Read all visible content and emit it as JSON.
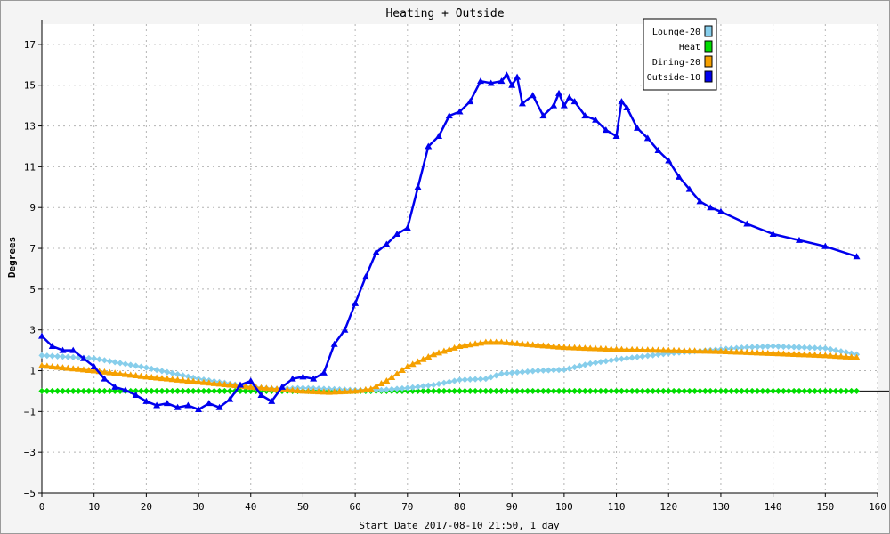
{
  "chart_data": {
    "type": "line",
    "title": "Heating + Outside",
    "xlabel": "Start Date 2017-08-10 21:50, 1 day",
    "ylabel": "Degrees",
    "xlim": [
      0,
      160
    ],
    "ylim": [
      -5,
      18
    ],
    "x_ticks": [
      0,
      10,
      20,
      30,
      40,
      50,
      60,
      70,
      80,
      90,
      100,
      110,
      120,
      130,
      140,
      150,
      160
    ],
    "y_ticks": [
      -5,
      -3,
      -1,
      1,
      3,
      5,
      7,
      9,
      11,
      13,
      15,
      17
    ],
    "grid": true,
    "legend_position": "top-right",
    "series": [
      {
        "name": "Lounge-20",
        "color": "#87ceeb",
        "marker": "diamond",
        "x": [
          0,
          10,
          20,
          30,
          40,
          45,
          50,
          60,
          65,
          70,
          75,
          80,
          85,
          88,
          95,
          100,
          105,
          110,
          115,
          120,
          125,
          130,
          135,
          140,
          145,
          150,
          156
        ],
        "y": [
          1.75,
          1.6,
          1.15,
          0.6,
          0.2,
          0.1,
          0.15,
          0.05,
          0.05,
          0.15,
          0.3,
          0.55,
          0.6,
          0.85,
          1.0,
          1.05,
          1.35,
          1.55,
          1.7,
          1.85,
          1.95,
          2.05,
          2.15,
          2.2,
          2.15,
          2.1,
          1.8
        ]
      },
      {
        "name": "Heat",
        "color": "#00dd00",
        "marker": "diamond",
        "x": [
          0,
          156
        ],
        "y": [
          0,
          0
        ]
      },
      {
        "name": "Dining-20",
        "color": "#f5a000",
        "marker": "triangle",
        "x": [
          0,
          10,
          20,
          30,
          40,
          50,
          55,
          60,
          63,
          66,
          70,
          75,
          80,
          85,
          88,
          95,
          100,
          110,
          120,
          130,
          140,
          150,
          156
        ],
        "y": [
          1.25,
          1.0,
          0.7,
          0.45,
          0.2,
          0.0,
          -0.05,
          0.0,
          0.1,
          0.5,
          1.2,
          1.8,
          2.2,
          2.4,
          2.4,
          2.25,
          2.15,
          2.05,
          2.0,
          1.95,
          1.85,
          1.75,
          1.65
        ]
      },
      {
        "name": "Outside-10",
        "color": "#0000ee",
        "marker": "triangle",
        "x": [
          0,
          2,
          4,
          6,
          8,
          10,
          12,
          14,
          16,
          18,
          20,
          22,
          24,
          26,
          28,
          30,
          32,
          34,
          36,
          38,
          40,
          42,
          44,
          46,
          48,
          50,
          52,
          54,
          56,
          58,
          60,
          62,
          64,
          66,
          68,
          70,
          72,
          74,
          76,
          78,
          80,
          82,
          84,
          86,
          88,
          89,
          90,
          91,
          92,
          94,
          96,
          98,
          99,
          100,
          101,
          102,
          104,
          106,
          108,
          110,
          111,
          112,
          114,
          116,
          118,
          120,
          122,
          124,
          126,
          128,
          130,
          135,
          140,
          145,
          150,
          156
        ],
        "y": [
          2.7,
          2.2,
          2.0,
          2.0,
          1.6,
          1.2,
          0.6,
          0.2,
          0.05,
          -0.2,
          -0.5,
          -0.7,
          -0.6,
          -0.8,
          -0.7,
          -0.9,
          -0.6,
          -0.8,
          -0.4,
          0.3,
          0.5,
          -0.2,
          -0.5,
          0.2,
          0.6,
          0.7,
          0.6,
          0.9,
          2.3,
          3.0,
          4.3,
          5.6,
          6.8,
          7.2,
          7.7,
          8.0,
          10.0,
          12.0,
          12.5,
          13.5,
          13.7,
          14.2,
          15.2,
          15.1,
          15.2,
          15.5,
          15.0,
          15.4,
          14.1,
          14.5,
          13.5,
          14.0,
          14.6,
          14.0,
          14.4,
          14.2,
          13.5,
          13.3,
          12.8,
          12.5,
          14.2,
          13.9,
          12.9,
          12.4,
          11.8,
          11.3,
          10.5,
          9.9,
          9.3,
          9.0,
          8.8,
          8.2,
          7.7,
          7.4,
          7.1,
          6.6
        ]
      }
    ]
  }
}
